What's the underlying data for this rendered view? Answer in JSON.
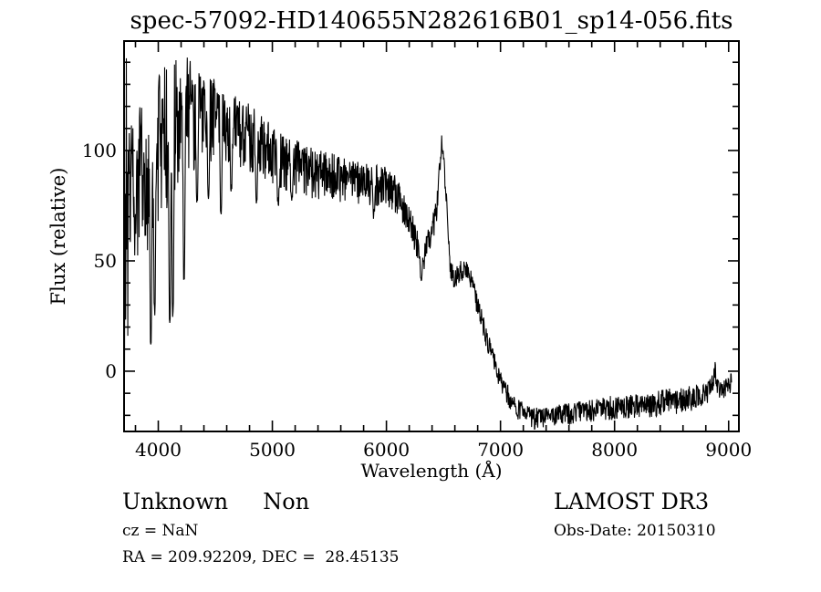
{
  "title": "spec-57092-HD140655N282616B01_sp14-056.fits",
  "annotations": {
    "class_label": "Unknown     Non",
    "cz_line": "cz = NaN",
    "radec_line": "RA = 209.92209, DEC =  28.45135",
    "survey": "LAMOST DR3",
    "obs_date": "Obs-Date: 20150310"
  },
  "chart_data": {
    "type": "line",
    "title": "spec-57092-HD140655N282616B01_sp14-056.fits",
    "xlabel": "Wavelength (Å)",
    "ylabel": "Flux (relative)",
    "xlim": [
      3700,
      9090
    ],
    "ylim": [
      -27.3,
      149.6
    ],
    "x_major_ticks": [
      4000,
      5000,
      6000,
      7000,
      8000,
      9000
    ],
    "x_minor_step": 200,
    "y_major_ticks": [
      0,
      50,
      100
    ],
    "y_minor_step": 10,
    "grid": false,
    "legend": false,
    "line_color": "#000000",
    "background_color": "#ffffff",
    "series": [
      {
        "name": "spectrum",
        "wl_start": 3704,
        "wl_end": 9028,
        "wl_step": 3.2,
        "noise_seed": 20150310,
        "baseline": [
          [
            3704,
            72
          ],
          [
            3720,
            85
          ],
          [
            3760,
            92
          ],
          [
            3800,
            88
          ],
          [
            3850,
            92
          ],
          [
            3900,
            96
          ],
          [
            3950,
            98
          ],
          [
            4000,
            106
          ],
          [
            4050,
            110
          ],
          [
            4100,
            114
          ],
          [
            4150,
            117
          ],
          [
            4200,
            120
          ],
          [
            4260,
            122
          ],
          [
            4300,
            120
          ],
          [
            4360,
            117
          ],
          [
            4400,
            119
          ],
          [
            4460,
            116
          ],
          [
            4500,
            117
          ],
          [
            4560,
            113
          ],
          [
            4600,
            113
          ],
          [
            4700,
            111
          ],
          [
            4800,
            108
          ],
          [
            4900,
            105
          ],
          [
            5000,
            100
          ],
          [
            5100,
            97
          ],
          [
            5200,
            95
          ],
          [
            5300,
            93
          ],
          [
            5400,
            91
          ],
          [
            5500,
            90
          ],
          [
            5600,
            89
          ],
          [
            5700,
            88
          ],
          [
            5800,
            87
          ],
          [
            5900,
            86
          ],
          [
            6000,
            85
          ],
          [
            6060,
            83
          ],
          [
            6120,
            79
          ],
          [
            6180,
            71
          ],
          [
            6240,
            64
          ],
          [
            6290,
            55
          ],
          [
            6320,
            52
          ],
          [
            6360,
            58
          ],
          [
            6400,
            64
          ],
          [
            6440,
            74
          ],
          [
            6465,
            92
          ],
          [
            6485,
            104
          ],
          [
            6505,
            97
          ],
          [
            6525,
            78
          ],
          [
            6545,
            58
          ],
          [
            6565,
            46
          ],
          [
            6600,
            43
          ],
          [
            6650,
            46
          ],
          [
            6700,
            46
          ],
          [
            6740,
            42
          ],
          [
            6780,
            34
          ],
          [
            6820,
            27
          ],
          [
            6860,
            19
          ],
          [
            6900,
            12
          ],
          [
            6950,
            4
          ],
          [
            7000,
            -3
          ],
          [
            7050,
            -9
          ],
          [
            7100,
            -13
          ],
          [
            7150,
            -16
          ],
          [
            7200,
            -18.5
          ],
          [
            7300,
            -20.5
          ],
          [
            7400,
            -20
          ],
          [
            7500,
            -19
          ],
          [
            7600,
            -18.5
          ],
          [
            7700,
            -17.5
          ],
          [
            7800,
            -17
          ],
          [
            7900,
            -16
          ],
          [
            8000,
            -15.5
          ],
          [
            8100,
            -15
          ],
          [
            8200,
            -14.5
          ],
          [
            8300,
            -14
          ],
          [
            8400,
            -13.5
          ],
          [
            8500,
            -12.5
          ],
          [
            8600,
            -12
          ],
          [
            8700,
            -11
          ],
          [
            8800,
            -9.5
          ],
          [
            8850,
            -7
          ],
          [
            8880,
            2
          ],
          [
            8905,
            -6
          ],
          [
            8940,
            -8
          ],
          [
            8975,
            -7
          ],
          [
            9005,
            -7
          ],
          [
            9028,
            -3
          ]
        ],
        "noise_amplitude": [
          [
            3704,
            72
          ],
          [
            3725,
            60
          ],
          [
            3755,
            30
          ],
          [
            3800,
            28
          ],
          [
            3900,
            30
          ],
          [
            4000,
            30
          ],
          [
            4100,
            27
          ],
          [
            4200,
            22
          ],
          [
            4300,
            20
          ],
          [
            4400,
            18
          ],
          [
            4500,
            16
          ],
          [
            4600,
            15
          ],
          [
            4800,
            13
          ],
          [
            5000,
            11
          ],
          [
            5200,
            10
          ],
          [
            5500,
            9
          ],
          [
            5800,
            8
          ],
          [
            6000,
            7.5
          ],
          [
            6150,
            6.5
          ],
          [
            6300,
            6
          ],
          [
            6450,
            4.5
          ],
          [
            6550,
            4
          ],
          [
            7000,
            4
          ],
          [
            7500,
            4
          ],
          [
            8000,
            4.5
          ],
          [
            8600,
            5
          ],
          [
            8850,
            4
          ],
          [
            9028,
            3.5
          ]
        ],
        "absorption_dips": [
          [
            3935,
            12
          ],
          [
            3968,
            25
          ],
          [
            4101,
            21
          ],
          [
            4128,
            24
          ],
          [
            4226,
            40
          ],
          [
            4340,
            74
          ],
          [
            4440,
            75
          ],
          [
            4550,
            71
          ],
          [
            4640,
            80
          ],
          [
            4861,
            76
          ],
          [
            5050,
            74
          ],
          [
            5170,
            75
          ],
          [
            5890,
            69
          ],
          [
            6305,
            40
          ]
        ]
      }
    ]
  }
}
